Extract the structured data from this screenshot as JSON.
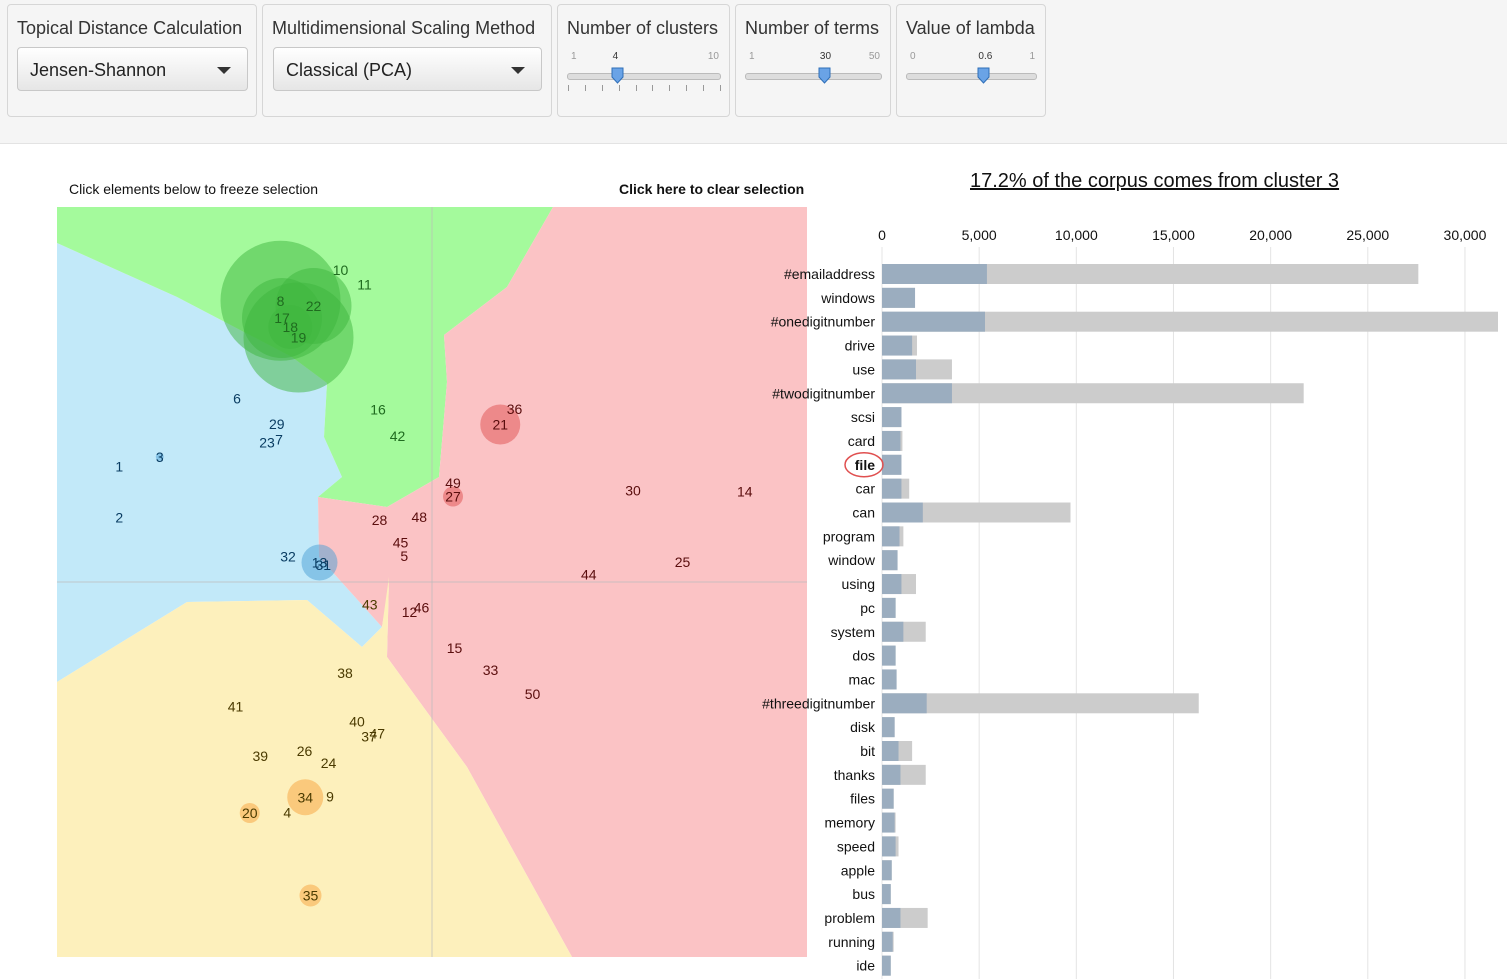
{
  "controls": {
    "distance": {
      "label": "Topical Distance Calculation",
      "value": "Jensen-Shannon"
    },
    "mds": {
      "label": "Multidimensional Scaling Method",
      "value": "Classical (PCA)"
    },
    "clusters": {
      "label": "Number of clusters",
      "min": "1",
      "max": "10",
      "value": "4",
      "fraction": 0.333
    },
    "terms": {
      "label": "Number of terms",
      "min": "1",
      "max": "50",
      "value": "30",
      "fraction": 0.592
    },
    "lambda": {
      "label": "Value of lambda",
      "min": "0",
      "max": "1",
      "value": "0.6",
      "fraction": 0.6
    }
  },
  "notes": {
    "freeze": "Click elements below to freeze selection",
    "clear": "Click here to clear selection"
  },
  "bar_title": "17.2% of the corpus comes from cluster 3",
  "colors": {
    "region_blue": "#c2e9f9",
    "region_green": "#a4fa9c",
    "region_red": "#fbc3c5",
    "region_yellow": "#fdf0bc",
    "circle_green": "#3db53d",
    "circle_blue": "#4a9fd6",
    "circle_red": "#e05050",
    "circle_orange": "#f7a23c",
    "bar_gray": "#cccccc",
    "bar_blue": "#9badbf",
    "highlight": "#e05050"
  },
  "chart_data": [
    {
      "type": "scatter",
      "title": "",
      "points": [
        {
          "label": "1",
          "x": 0.083,
          "y": 0.654,
          "cluster": "blue"
        },
        {
          "label": "2",
          "x": 0.083,
          "y": 0.586,
          "cluster": "blue"
        },
        {
          "label": "3",
          "x": 0.137,
          "y": 0.667,
          "cluster": "blue",
          "size": 4
        },
        {
          "label": "6",
          "x": 0.24,
          "y": 0.745,
          "cluster": "blue"
        },
        {
          "label": "29",
          "x": 0.293,
          "y": 0.711,
          "cluster": "blue"
        },
        {
          "label": "23",
          "x": 0.28,
          "y": 0.686,
          "cluster": "blue"
        },
        {
          "label": "7",
          "x": 0.296,
          "y": 0.69,
          "cluster": "blue"
        },
        {
          "label": "32",
          "x": 0.308,
          "y": 0.534,
          "cluster": "blue"
        },
        {
          "label": "13",
          "x": 0.35,
          "y": 0.526,
          "cluster": "blue",
          "size": 18
        },
        {
          "label": "31",
          "x": 0.355,
          "y": 0.523,
          "cluster": "blue"
        },
        {
          "label": "10",
          "x": 0.378,
          "y": 0.916,
          "cluster": "green"
        },
        {
          "label": "11",
          "x": 0.41,
          "y": 0.897,
          "cluster": "green"
        },
        {
          "label": "8",
          "x": 0.298,
          "y": 0.875,
          "cluster": "green",
          "size": 60
        },
        {
          "label": "22",
          "x": 0.342,
          "y": 0.868,
          "cluster": "green",
          "size": 38
        },
        {
          "label": "17",
          "x": 0.3,
          "y": 0.852,
          "cluster": "green",
          "size": 40
        },
        {
          "label": "18",
          "x": 0.311,
          "y": 0.84,
          "cluster": "green",
          "size": 22
        },
        {
          "label": "19",
          "x": 0.322,
          "y": 0.826,
          "cluster": "green",
          "size": 55
        },
        {
          "label": "16",
          "x": 0.428,
          "y": 0.73,
          "cluster": "green"
        },
        {
          "label": "42",
          "x": 0.454,
          "y": 0.695,
          "cluster": "green"
        },
        {
          "label": "36",
          "x": 0.61,
          "y": 0.731,
          "cluster": "red"
        },
        {
          "label": "21",
          "x": 0.591,
          "y": 0.71,
          "cluster": "red",
          "size": 20
        },
        {
          "label": "49",
          "x": 0.528,
          "y": 0.632,
          "cluster": "red"
        },
        {
          "label": "27",
          "x": 0.528,
          "y": 0.614,
          "cluster": "red",
          "size": 10
        },
        {
          "label": "28",
          "x": 0.43,
          "y": 0.583,
          "cluster": "red"
        },
        {
          "label": "48",
          "x": 0.483,
          "y": 0.587,
          "cluster": "red"
        },
        {
          "label": "45",
          "x": 0.458,
          "y": 0.553,
          "cluster": "red"
        },
        {
          "label": "5",
          "x": 0.463,
          "y": 0.535,
          "cluster": "red"
        },
        {
          "label": "30",
          "x": 0.768,
          "y": 0.622,
          "cluster": "red"
        },
        {
          "label": "14",
          "x": 0.917,
          "y": 0.621,
          "cluster": "red"
        },
        {
          "label": "25",
          "x": 0.834,
          "y": 0.527,
          "cluster": "red"
        },
        {
          "label": "44",
          "x": 0.709,
          "y": 0.51,
          "cluster": "red"
        },
        {
          "label": "12",
          "x": 0.47,
          "y": 0.46,
          "cluster": "red"
        },
        {
          "label": "46",
          "x": 0.486,
          "y": 0.466,
          "cluster": "red"
        },
        {
          "label": "15",
          "x": 0.53,
          "y": 0.412,
          "cluster": "red"
        },
        {
          "label": "33",
          "x": 0.578,
          "y": 0.383,
          "cluster": "red"
        },
        {
          "label": "50",
          "x": 0.634,
          "y": 0.351,
          "cluster": "red"
        },
        {
          "label": "43",
          "x": 0.417,
          "y": 0.47,
          "cluster": "yellow"
        },
        {
          "label": "38",
          "x": 0.384,
          "y": 0.379,
          "cluster": "yellow"
        },
        {
          "label": "41",
          "x": 0.238,
          "y": 0.334,
          "cluster": "yellow"
        },
        {
          "label": "40",
          "x": 0.4,
          "y": 0.314,
          "cluster": "yellow"
        },
        {
          "label": "37",
          "x": 0.416,
          "y": 0.294,
          "cluster": "yellow"
        },
        {
          "label": "47",
          "x": 0.427,
          "y": 0.298,
          "cluster": "yellow"
        },
        {
          "label": "39",
          "x": 0.271,
          "y": 0.268,
          "cluster": "yellow"
        },
        {
          "label": "26",
          "x": 0.33,
          "y": 0.275,
          "cluster": "yellow"
        },
        {
          "label": "24",
          "x": 0.362,
          "y": 0.259,
          "cluster": "yellow"
        },
        {
          "label": "34",
          "x": 0.331,
          "y": 0.213,
          "cluster": "yellow",
          "size": 18
        },
        {
          "label": "9",
          "x": 0.364,
          "y": 0.214,
          "cluster": "yellow"
        },
        {
          "label": "20",
          "x": 0.257,
          "y": 0.192,
          "cluster": "yellow",
          "size": 10
        },
        {
          "label": "4",
          "x": 0.307,
          "y": 0.193,
          "cluster": "yellow"
        },
        {
          "label": "35",
          "x": 0.338,
          "y": 0.082,
          "cluster": "yellow",
          "size": 11
        }
      ]
    },
    {
      "type": "bar",
      "title": "17.2% of the corpus comes from cluster 3",
      "orientation": "horizontal",
      "xlim": [
        0,
        31700
      ],
      "ticks": [
        0,
        5000,
        10000,
        15000,
        20000,
        25000,
        30000
      ],
      "tick_labels": [
        "0",
        "5,000",
        "10,000",
        "15,000",
        "20,000",
        "25,000",
        "30,000"
      ],
      "highlighted_term": "file",
      "series": [
        {
          "role": "overall",
          "values": [
            27600,
            1700,
            31700,
            1800,
            3600,
            21700,
            1000,
            1050,
            1000,
            1400,
            9700,
            1100,
            800,
            1750,
            700,
            2250,
            700,
            750,
            16300,
            650,
            1550,
            2250,
            600,
            700,
            850,
            500,
            450,
            2350,
            600,
            450
          ]
        },
        {
          "role": "cluster",
          "values": [
            5400,
            1700,
            5300,
            1550,
            1750,
            3600,
            1000,
            950,
            1000,
            1000,
            2100,
            900,
            800,
            1000,
            700,
            1100,
            700,
            750,
            2300,
            650,
            850,
            950,
            600,
            650,
            700,
            500,
            450,
            950,
            550,
            450
          ]
        }
      ],
      "categories": [
        "#emailaddress",
        "windows",
        "#onedigitnumber",
        "drive",
        "use",
        "#twodigitnumber",
        "scsi",
        "card",
        "file",
        "car",
        "can",
        "program",
        "window",
        "using",
        "pc",
        "system",
        "dos",
        "mac",
        "#threedigitnumber",
        "disk",
        "bit",
        "thanks",
        "files",
        "memory",
        "speed",
        "apple",
        "bus",
        "problem",
        "running",
        "ide"
      ]
    }
  ]
}
